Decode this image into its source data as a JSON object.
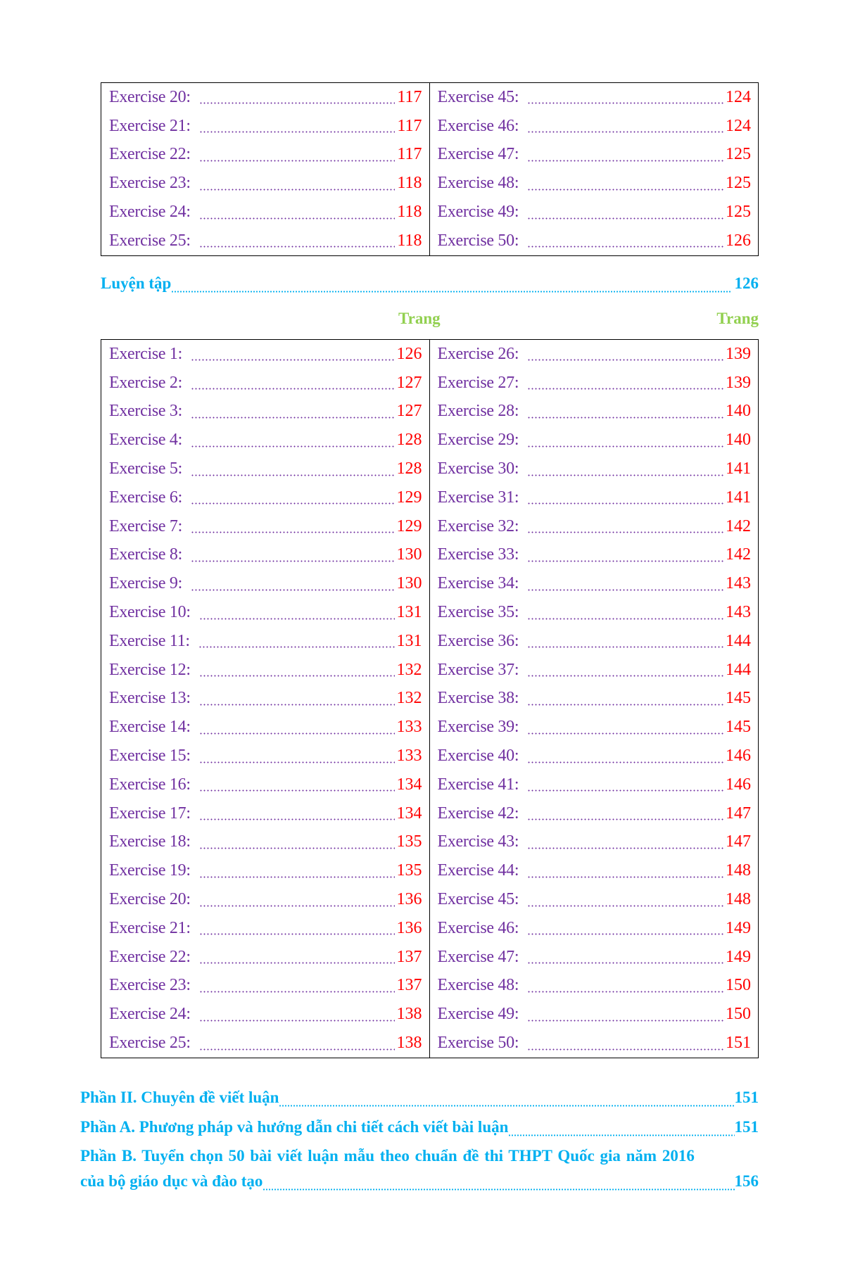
{
  "colors": {
    "label": "#7030a0",
    "page": "#ff0000",
    "heading": "#00b0f0",
    "trang": "#92d050"
  },
  "table1": {
    "left": [
      [
        "Exercise 20:",
        "117"
      ],
      [
        "Exercise 21:",
        "117"
      ],
      [
        "Exercise 22:",
        "117"
      ],
      [
        "Exercise 23:",
        "118"
      ],
      [
        "Exercise 24:",
        "118"
      ],
      [
        "Exercise 25:",
        "118"
      ]
    ],
    "right": [
      [
        "Exercise 45:",
        "124"
      ],
      [
        "Exercise 46:",
        "124"
      ],
      [
        "Exercise 47:",
        "125"
      ],
      [
        "Exercise 48:",
        "125"
      ],
      [
        "Exercise 49:",
        "125"
      ],
      [
        "Exercise 50:",
        "126"
      ]
    ]
  },
  "luyen_tap": {
    "label": "Luyện tập",
    "page": "126"
  },
  "trang_left": "Trang",
  "trang_right": "Trang",
  "table2": {
    "left": [
      [
        "Exercise 1:",
        "126"
      ],
      [
        "Exercise 2:",
        "127"
      ],
      [
        "Exercise 3:",
        "127"
      ],
      [
        "Exercise 4:",
        "128"
      ],
      [
        "Exercise 5:",
        "128"
      ],
      [
        "Exercise 6:",
        "129"
      ],
      [
        "Exercise 7:",
        "129"
      ],
      [
        "Exercise 8:",
        "130"
      ],
      [
        "Exercise 9:",
        "130"
      ],
      [
        "Exercise 10:",
        "131"
      ],
      [
        "Exercise 11:",
        "131"
      ],
      [
        "Exercise 12:",
        "132"
      ],
      [
        "Exercise 13:",
        "132"
      ],
      [
        "Exercise 14:",
        "133"
      ],
      [
        "Exercise 15:",
        "133"
      ],
      [
        "Exercise 16:",
        "134"
      ],
      [
        "Exercise 17:",
        "134"
      ],
      [
        "Exercise 18:",
        "135"
      ],
      [
        "Exercise 19:",
        "135"
      ],
      [
        "Exercise 20:",
        "136"
      ],
      [
        "Exercise 21:",
        "136"
      ],
      [
        "Exercise 22:",
        "137"
      ],
      [
        "Exercise 23:",
        "137"
      ],
      [
        "Exercise 24:",
        "138"
      ],
      [
        "Exercise 25:",
        "138"
      ]
    ],
    "right": [
      [
        "Exercise 26:",
        "139"
      ],
      [
        "Exercise 27:",
        "139"
      ],
      [
        "Exercise 28:",
        "140"
      ],
      [
        "Exercise 29:",
        "140"
      ],
      [
        "Exercise 30:",
        "141"
      ],
      [
        "Exercise 31:",
        "141"
      ],
      [
        "Exercise 32:",
        "142"
      ],
      [
        "Exercise 33:",
        "142"
      ],
      [
        "Exercise 34:",
        "143"
      ],
      [
        "Exercise 35:",
        "143"
      ],
      [
        "Exercise 36:",
        "144"
      ],
      [
        "Exercise 37:",
        "144"
      ],
      [
        "Exercise 38:",
        "145"
      ],
      [
        "Exercise 39:",
        "145"
      ],
      [
        "Exercise 40:",
        "146"
      ],
      [
        "Exercise 41:",
        "146"
      ],
      [
        "Exercise 42:",
        "147"
      ],
      [
        "Exercise 43:",
        "147"
      ],
      [
        "Exercise 44:",
        "148"
      ],
      [
        "Exercise 45:",
        "148"
      ],
      [
        "Exercise 46:",
        "149"
      ],
      [
        "Exercise 47:",
        "149"
      ],
      [
        "Exercise 48:",
        "150"
      ],
      [
        "Exercise 49:",
        "150"
      ],
      [
        "Exercise 50:",
        "151"
      ]
    ]
  },
  "sections": {
    "phan2": {
      "label": "Phần II. Chuyên đề viết luận",
      "page": "151"
    },
    "phanA": {
      "label": "Phần A. Phương pháp và hướng dẫn chi tiết cách viết bài luận",
      "page": "151"
    },
    "phanB_line1": "Phần B. Tuyển chọn 50 bài viết luận mẫu theo chuẩn đề thi THPT Quốc gia năm 2016",
    "phanB_line2": {
      "label": "của bộ giáo dục và đào tạo",
      "page": "156"
    }
  }
}
